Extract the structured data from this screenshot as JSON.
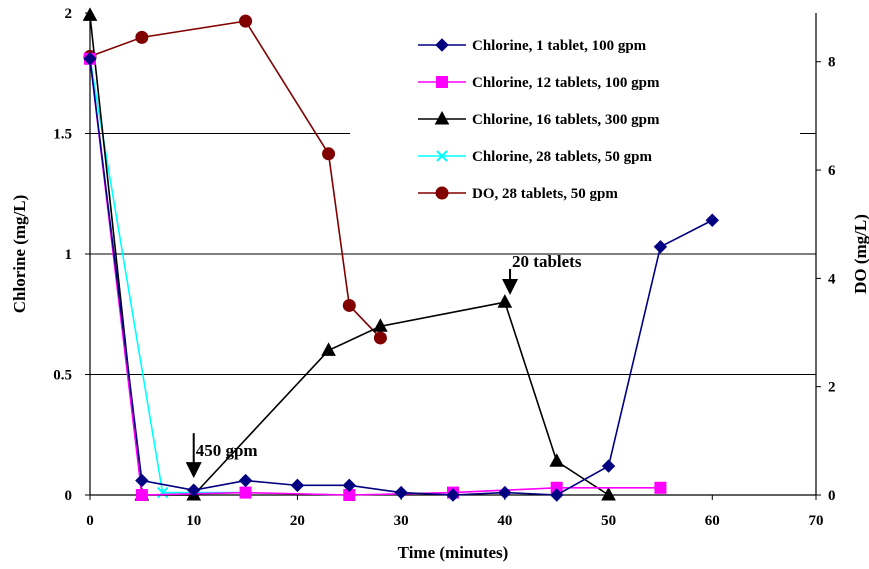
{
  "chart_data": {
    "type": "line",
    "title": "",
    "xlabel": "Time (minutes)",
    "ylabel": "Chlorine (mg/L)",
    "y2label": "DO (mg/L)",
    "xlim": [
      0,
      70
    ],
    "ylim": [
      0,
      2
    ],
    "y2lim": [
      0,
      8.9
    ],
    "xticks": [
      "0",
      "10",
      "20",
      "30",
      "40",
      "50",
      "60",
      "70"
    ],
    "yticks": [
      "0",
      "0.5",
      "1",
      "1.5",
      "2"
    ],
    "y2ticks": [
      "0",
      "2",
      "4",
      "6",
      "8"
    ],
    "grid": "horizontal",
    "legend_position": "top-right",
    "series": [
      {
        "name": "Chlorine, 1 tablet, 100 gpm",
        "axis": "left",
        "color": "#000080",
        "marker": "diamond",
        "x": [
          0,
          5,
          10,
          15,
          20,
          25,
          30,
          35,
          40,
          45,
          50,
          55,
          60
        ],
        "y": [
          1.81,
          0.06,
          0.02,
          0.06,
          0.04,
          0.04,
          0.01,
          0.0,
          0.01,
          0.0,
          0.12,
          1.03,
          1.14
        ]
      },
      {
        "name": "Chlorine, 12 tablets, 100 gpm",
        "axis": "left",
        "color": "#ff00ff",
        "marker": "square",
        "x": [
          0,
          5,
          15,
          25,
          35,
          45,
          55
        ],
        "y": [
          1.81,
          0.0,
          0.01,
          0.0,
          0.01,
          0.03,
          0.03
        ]
      },
      {
        "name": "Chlorine, 16 tablets, 300 gpm",
        "axis": "left",
        "color": "#000000",
        "marker": "triangle",
        "x": [
          0,
          5,
          10,
          23,
          28,
          40,
          45,
          50
        ],
        "y": [
          1.99,
          0.0,
          0.0,
          0.6,
          0.7,
          0.8,
          0.14,
          0.0
        ]
      },
      {
        "name": "Chlorine, 28 tablets, 50 gpm",
        "axis": "left",
        "color": "#00ffff",
        "marker": "x",
        "x": [
          0,
          7,
          15
        ],
        "y": [
          1.81,
          0.01,
          0.01
        ]
      },
      {
        "name": "DO, 28 tablets, 50 gpm",
        "axis": "right",
        "color": "#800000",
        "marker": "circle",
        "x": [
          0,
          5,
          15,
          23,
          25,
          28
        ],
        "y": [
          8.1,
          8.45,
          8.75,
          6.3,
          3.5,
          2.9
        ]
      }
    ],
    "annotations": [
      {
        "text": "450 gpm",
        "arrow_x": 10,
        "arrow_y": 0.07
      },
      {
        "text": "20 tablets",
        "arrow_x": 40.5,
        "arrow_y": 0.83
      }
    ]
  }
}
